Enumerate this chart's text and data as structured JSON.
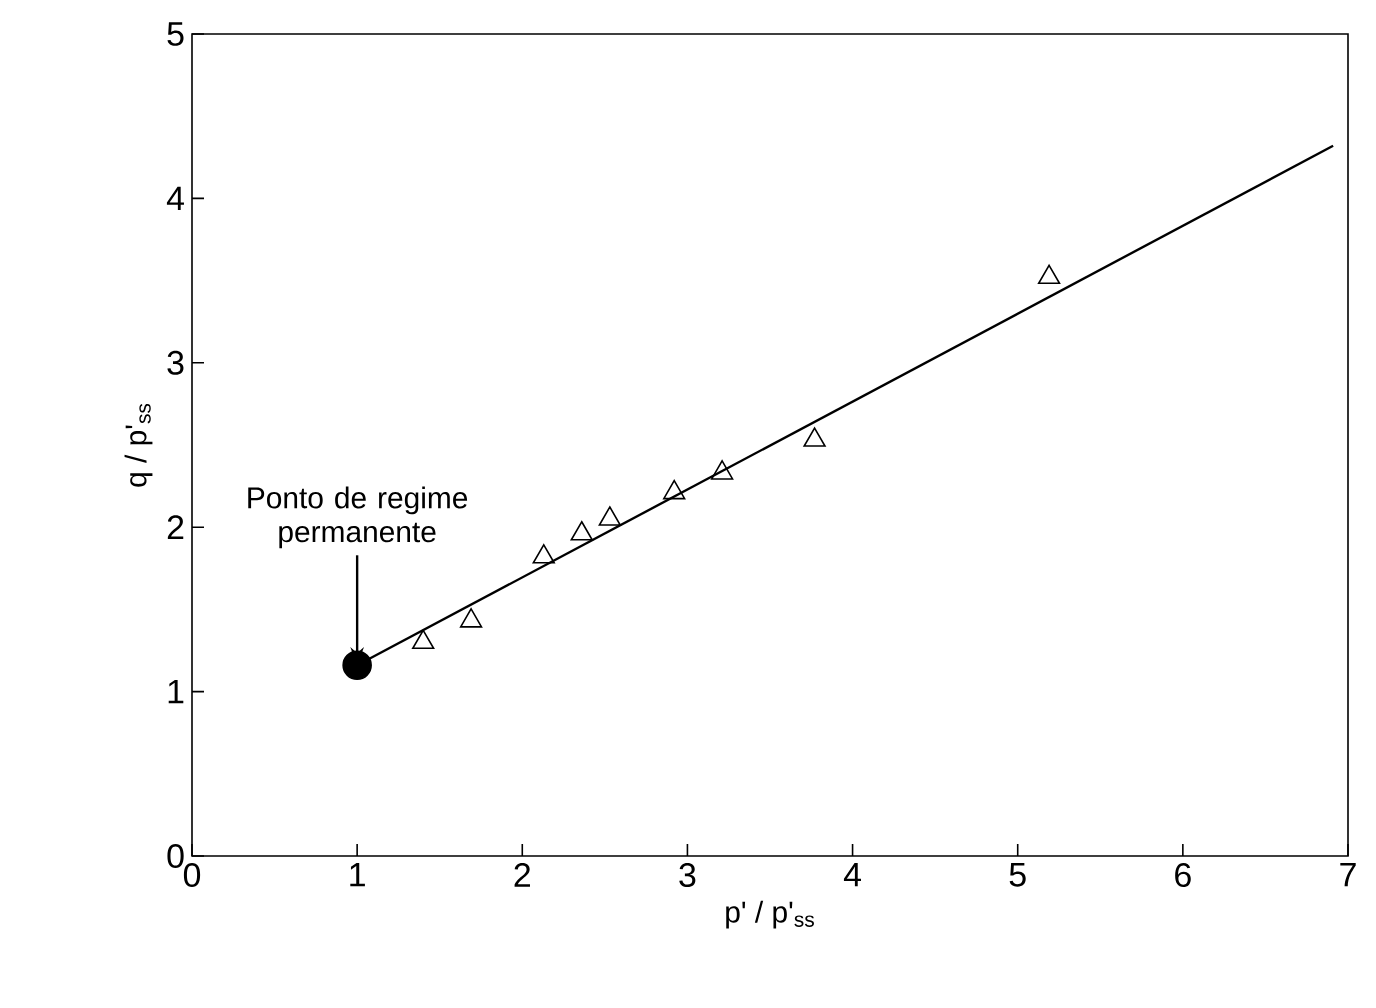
{
  "chart_data": {
    "type": "scatter",
    "xlabel": "p' / p'$_{ss}$",
    "ylabel": "q / p'$_{ss}$",
    "xlim": [
      0,
      7
    ],
    "ylim": [
      0,
      5
    ],
    "xticks": [
      0,
      1,
      2,
      3,
      4,
      5,
      6,
      7
    ],
    "yticks": [
      0,
      1,
      2,
      3,
      4,
      5
    ],
    "grid": false,
    "series": [
      {
        "type": "line",
        "color": "#000000",
        "marker": "none",
        "line_style": "solid",
        "x": [
          1.0,
          6.91
        ],
        "values": [
          1.16,
          4.32
        ]
      },
      {
        "color": "#000000",
        "marker": "triangle",
        "x": [
          1.4,
          1.69,
          2.13,
          2.36,
          2.53,
          2.92,
          3.21,
          3.77,
          5.19
        ],
        "values": [
          1.3,
          1.43,
          1.82,
          1.96,
          2.05,
          2.21,
          2.33,
          2.53,
          3.52
        ]
      },
      {
        "color": "#000000",
        "marker": "circle",
        "x": [
          1.0
        ],
        "values": [
          1.16
        ]
      }
    ],
    "annotations": [
      {
        "text": "Ponto de regime permanente",
        "x": 1.0,
        "y": 1.16
      }
    ]
  }
}
